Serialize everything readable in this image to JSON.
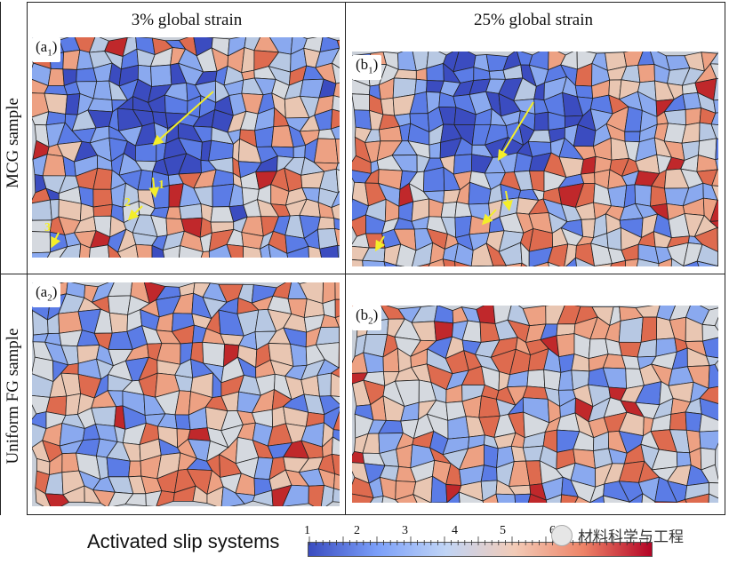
{
  "columns": [
    "3% global strain",
    "25% global strain"
  ],
  "rows": [
    "MCG sample",
    "Uniform FG sample"
  ],
  "panels": {
    "a1": {
      "main": "a",
      "sub": "1"
    },
    "b1": {
      "main": "b",
      "sub": "1"
    },
    "a2": {
      "main": "a",
      "sub": "2"
    },
    "b2": {
      "main": "b",
      "sub": "2"
    }
  },
  "annotations": [
    "1",
    "2",
    "3"
  ],
  "colorbar": {
    "label": "Activated slip systems",
    "ticks": [
      "1",
      "2",
      "3",
      "4",
      "5",
      "6"
    ],
    "colors": [
      "#3a4cc0",
      "#7b9ff9",
      "#c0d4f5",
      "#f2cbb7",
      "#ee8468",
      "#b40426"
    ]
  },
  "watermark": "材料科学与工程"
}
